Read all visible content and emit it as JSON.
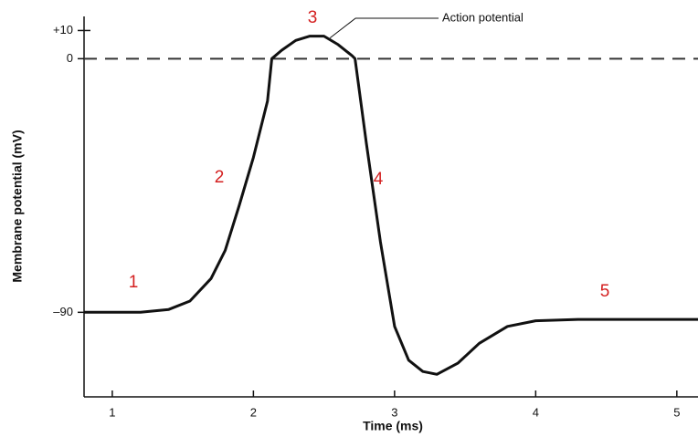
{
  "chart_data": {
    "type": "line",
    "y_label": "Membrane potential (mV)",
    "x_label": "Time (ms)",
    "xlim": [
      0.8,
      5.15
    ],
    "xticks": [
      1,
      2,
      3,
      4,
      5
    ],
    "ylim": [
      -120,
      15
    ],
    "yticks": [
      {
        "value": 10,
        "label": "+10"
      },
      0,
      {
        "value": -90,
        "label": "–90"
      }
    ],
    "hline": 0,
    "series": [
      {
        "name": "Action potential",
        "color": "#111111",
        "x": [
          0.8,
          1.2,
          1.4,
          1.55,
          1.7,
          1.8,
          1.9,
          2.0,
          2.1,
          2.13,
          2.2,
          2.3,
          2.4,
          2.5,
          2.6,
          2.7,
          2.72,
          2.8,
          2.9,
          3.0,
          3.1,
          3.2,
          3.3,
          3.45,
          3.6,
          3.8,
          4.0,
          4.3,
          5.15
        ],
        "values": [
          -90,
          -90,
          -89,
          -86,
          -78,
          -68,
          -52,
          -35,
          -15,
          0,
          3,
          6.5,
          8,
          8,
          5,
          1,
          0,
          -30,
          -65,
          -95,
          -107,
          -111,
          -112,
          -108,
          -101,
          -95,
          -93,
          -92.5,
          -92.5
        ]
      }
    ],
    "annotations": [
      "1",
      "2",
      "3",
      "4",
      "5"
    ]
  }
}
